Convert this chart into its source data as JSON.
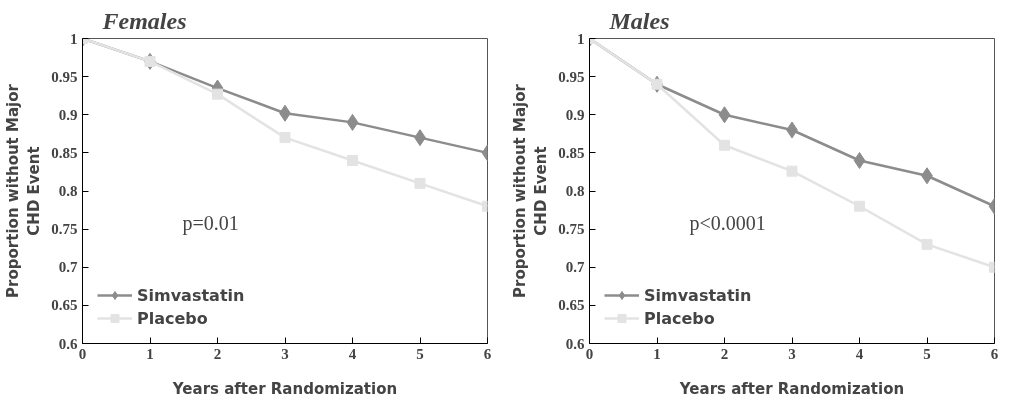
{
  "chart_data": [
    {
      "type": "line",
      "title": "Females",
      "xlabel": "Years after Randomization",
      "ylabel": "Proportion without Major\nCHD Event",
      "x": [
        0,
        1,
        2,
        3,
        4,
        5,
        6
      ],
      "series": [
        {
          "name": "Simvastatin",
          "color": "#8c8c8c",
          "marker": "diamond",
          "values": [
            1,
            0.97,
            0.935,
            0.902,
            0.89,
            0.87,
            0.85
          ]
        },
        {
          "name": "Placebo",
          "color": "#e3e3e3",
          "marker": "square",
          "values": [
            1,
            0.97,
            0.927,
            0.87,
            0.84,
            0.81,
            0.78
          ]
        }
      ],
      "annotations": [
        "p=0.01"
      ],
      "xlim": [
        0,
        6
      ],
      "ylim": [
        0.6,
        1
      ],
      "xticks": [
        0,
        1,
        2,
        3,
        4,
        5,
        6
      ],
      "yticks": [
        0.6,
        0.65,
        0.7,
        0.75,
        0.8,
        0.85,
        0.9,
        0.95,
        1
      ],
      "grid": false,
      "legend": "bottom left",
      "line_style": "solid"
    },
    {
      "type": "line",
      "title": "Males",
      "xlabel": "Years after Randomization",
      "ylabel": "Proportion without Major\nCHD Event",
      "x": [
        0,
        1,
        2,
        3,
        4,
        5,
        6
      ],
      "series": [
        {
          "name": "Simvastatin",
          "color": "#8c8c8c",
          "marker": "diamond",
          "values": [
            1,
            0.94,
            0.9,
            0.88,
            0.84,
            0.82,
            0.78
          ]
        },
        {
          "name": "Placebo",
          "color": "#e3e3e3",
          "marker": "square",
          "values": [
            1,
            0.94,
            0.86,
            0.826,
            0.78,
            0.73,
            0.7
          ]
        }
      ],
      "annotations": [
        "p<0.0001"
      ],
      "xlim": [
        0,
        6
      ],
      "ylim": [
        0.6,
        1
      ],
      "xticks": [
        0,
        1,
        2,
        3,
        4,
        5,
        6
      ],
      "yticks": [
        0.6,
        0.65,
        0.7,
        0.75,
        0.8,
        0.85,
        0.9,
        0.95,
        1
      ],
      "grid": false,
      "legend": "bottom left",
      "line_style": "solid"
    }
  ]
}
